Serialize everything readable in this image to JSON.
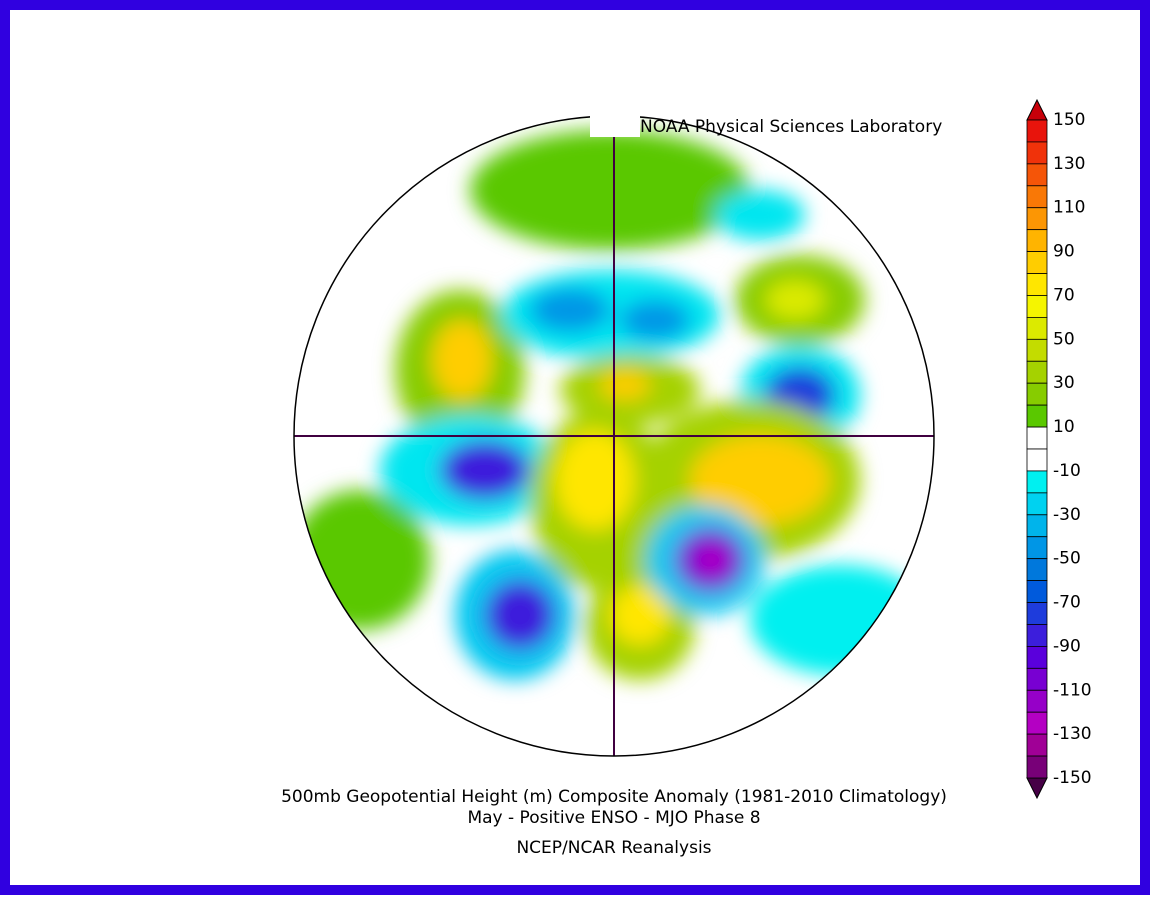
{
  "credit": "NOAA Physical Sciences Laboratory",
  "title": [
    "500mb Geopotential Height (m) Composite Anomaly (1981-2010 Climatology)",
    "May - Positive ENSO - MJO Phase 8"
  ],
  "source": "NCEP/NCAR Reanalysis",
  "colorbar": {
    "ticks": [
      150,
      130,
      110,
      90,
      70,
      50,
      30,
      10,
      -10,
      -30,
      -50,
      -70,
      -90,
      -110,
      -130,
      -150
    ],
    "over_color": "#c8000a",
    "under_color": "#460046",
    "colors": [
      "#e8140c",
      "#f0320a",
      "#f55508",
      "#f97806",
      "#fc9604",
      "#ffb400",
      "#ffcd00",
      "#ffe600",
      "#f5f500",
      "#dcea00",
      "#c3dc00",
      "#a5d200",
      "#87cc00",
      "#5ac800",
      "#ffffff",
      "#ffffff",
      "#00f0f0",
      "#00d2f0",
      "#00b4eb",
      "#0096e6",
      "#0078dc",
      "#005adc",
      "#1e3cdc",
      "#3c1edc",
      "#5a00dc",
      "#7800d2",
      "#9600c8",
      "#b400c3",
      "#a00096",
      "#780078"
    ]
  }
}
